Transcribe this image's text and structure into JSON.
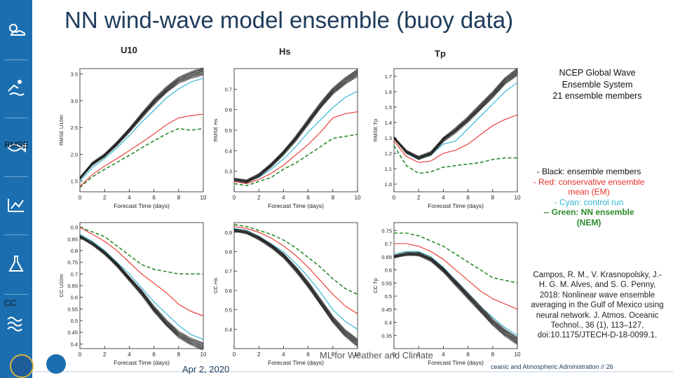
{
  "title": "NN wind-wave model ensemble (buoy data)",
  "columns": [
    "U10",
    "Hs",
    "Tp"
  ],
  "rows": [
    "RMSE",
    "CC"
  ],
  "system_note": {
    "line1": "NCEP Global Wave",
    "line2": "Ensemble System",
    "line3": "21 ensemble members"
  },
  "legend": {
    "black": "- Black: ensemble members",
    "red": "- Red: conservative ensemble mean (EM)",
    "cyan": "- Cyan: control run",
    "green": "-- Green: NN ensemble (NEM)"
  },
  "colors": {
    "members": "#222222",
    "em": "#e8312a",
    "control": "#2bb3d1",
    "nem": "#2a8a2a",
    "sidebar": "#1b6fb0",
    "title": "#1d3a5a"
  },
  "citation": "Campos, R. M., V. Krasnopolsky, J.-H. G. M. Alves, and S. G. Penny, 2018: Nonlinear wave ensemble averaging in the Gulf of Mexico using neural network. J. Atmos. Oceanic Technol., 36 (1), 113–127, doi:10.1175/JTECH-D-18-0099.1.",
  "footer": {
    "date": "Apr 2, 2020",
    "center": "ML for Weather and Climate",
    "right": "ceanic and Atmospheric Administration // 26"
  },
  "sidebar_icons": [
    "sun-cloud-icon",
    "swimmer-icon",
    "fish-icon",
    "chart-icon",
    "flask-icon",
    "waves-icon"
  ],
  "chart_data": [
    {
      "type": "line",
      "xlabel": "Forecast Time (days)",
      "ylabel": "RMSE U10m",
      "xlim": [
        0,
        10
      ],
      "ylim": [
        1.3,
        3.6
      ],
      "xticks": [
        0,
        2,
        4,
        6,
        8,
        10
      ],
      "yticks": [
        1.5,
        2.0,
        2.5,
        3.0,
        3.5
      ],
      "x": [
        0,
        1,
        2,
        3,
        4,
        5,
        6,
        7,
        8,
        9,
        10
      ],
      "series": [
        {
          "role": "members",
          "values": [
            1.55,
            1.82,
            1.98,
            2.2,
            2.45,
            2.72,
            2.98,
            3.2,
            3.38,
            3.48,
            3.55
          ]
        },
        {
          "role": "control",
          "values": [
            1.5,
            1.75,
            1.92,
            2.12,
            2.35,
            2.6,
            2.82,
            3.05,
            3.22,
            3.35,
            3.42
          ]
        },
        {
          "role": "em",
          "values": [
            1.4,
            1.62,
            1.78,
            1.92,
            2.07,
            2.22,
            2.38,
            2.55,
            2.68,
            2.72,
            2.75
          ]
        },
        {
          "role": "nem",
          "values": [
            1.38,
            1.58,
            1.72,
            1.85,
            1.98,
            2.12,
            2.25,
            2.38,
            2.48,
            2.45,
            2.48
          ]
        }
      ]
    },
    {
      "type": "line",
      "xlabel": "Forecast Time (days)",
      "ylabel": "RMSE Hs",
      "xlim": [
        0,
        10
      ],
      "ylim": [
        0.2,
        0.8
      ],
      "xticks": [
        0,
        2,
        4,
        6,
        8,
        10
      ],
      "yticks": [
        0.3,
        0.4,
        0.5,
        0.6,
        0.7
      ],
      "x": [
        0,
        1,
        2,
        3,
        4,
        5,
        6,
        7,
        8,
        9,
        10
      ],
      "series": [
        {
          "role": "members",
          "values": [
            0.26,
            0.25,
            0.28,
            0.33,
            0.39,
            0.46,
            0.54,
            0.62,
            0.69,
            0.74,
            0.78
          ]
        },
        {
          "role": "control",
          "values": [
            0.26,
            0.25,
            0.27,
            0.31,
            0.36,
            0.42,
            0.49,
            0.55,
            0.61,
            0.66,
            0.69
          ]
        },
        {
          "role": "em",
          "values": [
            0.25,
            0.24,
            0.26,
            0.29,
            0.33,
            0.38,
            0.43,
            0.49,
            0.56,
            0.58,
            0.59
          ]
        },
        {
          "role": "nem",
          "values": [
            0.24,
            0.23,
            0.25,
            0.27,
            0.31,
            0.34,
            0.38,
            0.42,
            0.46,
            0.47,
            0.48
          ]
        }
      ]
    },
    {
      "type": "line",
      "xlabel": "Forecast Time (days)",
      "ylabel": "RMSE Tp",
      "xlim": [
        0,
        10
      ],
      "ylim": [
        0.95,
        1.75
      ],
      "xticks": [
        0,
        2,
        4,
        6,
        8,
        10
      ],
      "yticks": [
        1.0,
        1.1,
        1.2,
        1.3,
        1.4,
        1.5,
        1.6,
        1.7
      ],
      "x": [
        0,
        1,
        2,
        3,
        4,
        5,
        6,
        7,
        8,
        9,
        10
      ],
      "series": [
        {
          "role": "members",
          "values": [
            1.3,
            1.21,
            1.17,
            1.2,
            1.29,
            1.35,
            1.42,
            1.5,
            1.58,
            1.67,
            1.73
          ]
        },
        {
          "role": "control",
          "values": [
            1.3,
            1.2,
            1.16,
            1.19,
            1.26,
            1.28,
            1.36,
            1.44,
            1.52,
            1.6,
            1.66
          ]
        },
        {
          "role": "em",
          "values": [
            1.28,
            1.18,
            1.14,
            1.15,
            1.2,
            1.22,
            1.26,
            1.32,
            1.38,
            1.42,
            1.45
          ]
        },
        {
          "role": "nem",
          "values": [
            1.25,
            1.12,
            1.07,
            1.08,
            1.11,
            1.12,
            1.13,
            1.14,
            1.16,
            1.17,
            1.17
          ]
        }
      ]
    },
    {
      "type": "line",
      "xlabel": "Forecast Time (days)",
      "ylabel": "CC U10m",
      "xlim": [
        0,
        10
      ],
      "ylim": [
        0.38,
        0.92
      ],
      "xticks": [
        0,
        2,
        4,
        6,
        8,
        10
      ],
      "yticks": [
        0.4,
        0.45,
        0.5,
        0.55,
        0.6,
        0.65,
        0.7,
        0.75,
        0.8,
        0.85,
        0.9
      ],
      "x": [
        0,
        1,
        2,
        3,
        4,
        5,
        6,
        7,
        8,
        9,
        10
      ],
      "series": [
        {
          "role": "members",
          "values": [
            0.86,
            0.83,
            0.79,
            0.74,
            0.68,
            0.62,
            0.55,
            0.49,
            0.44,
            0.41,
            0.39
          ]
        },
        {
          "role": "control",
          "values": [
            0.87,
            0.84,
            0.8,
            0.75,
            0.7,
            0.64,
            0.58,
            0.53,
            0.48,
            0.44,
            0.42
          ]
        },
        {
          "role": "em",
          "values": [
            0.9,
            0.87,
            0.84,
            0.8,
            0.75,
            0.7,
            0.66,
            0.62,
            0.57,
            0.54,
            0.52
          ]
        },
        {
          "role": "nem",
          "values": [
            0.9,
            0.88,
            0.86,
            0.82,
            0.78,
            0.74,
            0.72,
            0.71,
            0.7,
            0.7,
            0.7
          ]
        }
      ]
    },
    {
      "type": "line",
      "xlabel": "Forecast Time (days)",
      "ylabel": "CC Hs",
      "xlim": [
        0,
        10
      ],
      "ylim": [
        0.3,
        0.95
      ],
      "xticks": [
        0,
        2,
        4,
        6,
        8,
        10
      ],
      "yticks": [
        0.4,
        0.5,
        0.6,
        0.7,
        0.8,
        0.9
      ],
      "x": [
        0,
        1,
        2,
        3,
        4,
        5,
        6,
        7,
        8,
        9,
        10
      ],
      "series": [
        {
          "role": "members",
          "values": [
            0.91,
            0.9,
            0.87,
            0.83,
            0.78,
            0.71,
            0.63,
            0.54,
            0.45,
            0.38,
            0.33
          ]
        },
        {
          "role": "control",
          "values": [
            0.92,
            0.91,
            0.88,
            0.84,
            0.8,
            0.74,
            0.67,
            0.59,
            0.5,
            0.44,
            0.4
          ]
        },
        {
          "role": "em",
          "values": [
            0.93,
            0.92,
            0.9,
            0.87,
            0.83,
            0.78,
            0.72,
            0.65,
            0.58,
            0.52,
            0.48
          ]
        },
        {
          "role": "nem",
          "values": [
            0.94,
            0.93,
            0.91,
            0.89,
            0.86,
            0.82,
            0.77,
            0.72,
            0.66,
            0.61,
            0.58
          ]
        }
      ]
    },
    {
      "type": "line",
      "xlabel": "Forecast Time (days)",
      "ylabel": "CC Tp",
      "xlim": [
        0,
        10
      ],
      "ylim": [
        0.3,
        0.78
      ],
      "xticks": [
        0,
        2,
        4,
        6,
        8,
        10
      ],
      "yticks": [
        0.35,
        0.4,
        0.45,
        0.5,
        0.55,
        0.6,
        0.65,
        0.7,
        0.75
      ],
      "x": [
        0,
        1,
        2,
        3,
        4,
        5,
        6,
        7,
        8,
        9,
        10
      ],
      "series": [
        {
          "role": "members",
          "values": [
            0.65,
            0.66,
            0.66,
            0.64,
            0.6,
            0.55,
            0.5,
            0.45,
            0.4,
            0.36,
            0.33
          ]
        },
        {
          "role": "control",
          "values": [
            0.66,
            0.67,
            0.67,
            0.65,
            0.61,
            0.56,
            0.51,
            0.46,
            0.42,
            0.38,
            0.35
          ]
        },
        {
          "role": "em",
          "values": [
            0.7,
            0.7,
            0.69,
            0.67,
            0.64,
            0.6,
            0.56,
            0.52,
            0.49,
            0.47,
            0.45
          ]
        },
        {
          "role": "nem",
          "values": [
            0.74,
            0.74,
            0.73,
            0.71,
            0.69,
            0.66,
            0.63,
            0.6,
            0.57,
            0.56,
            0.55
          ]
        }
      ]
    }
  ]
}
